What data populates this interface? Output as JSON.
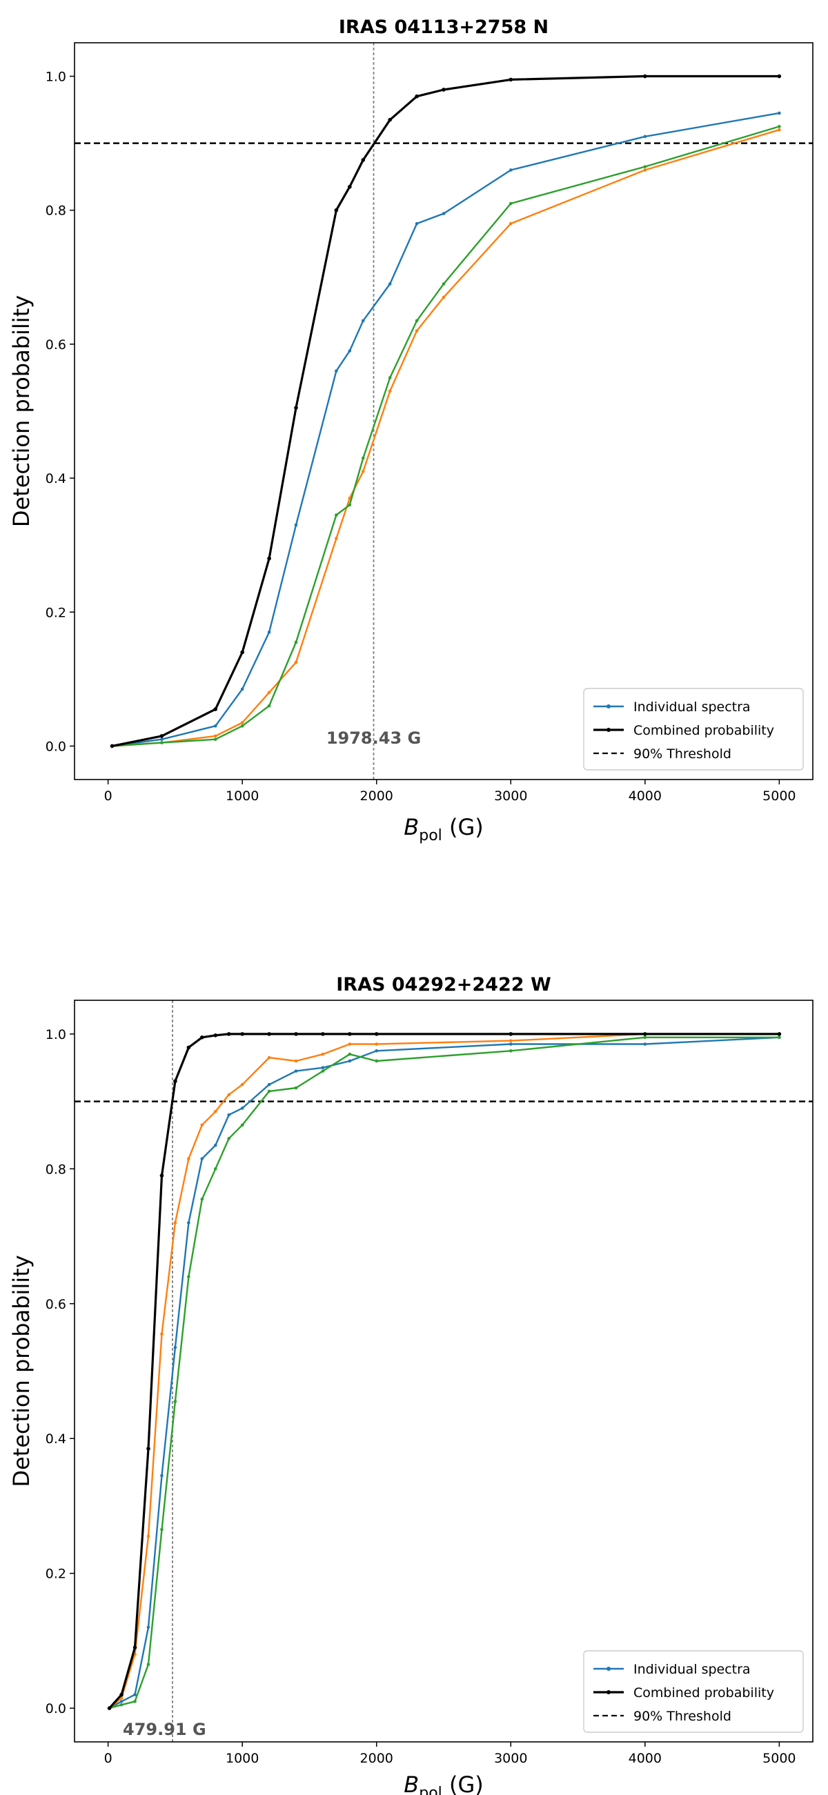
{
  "figure": {
    "legend_labels": [
      "Individual spectra",
      "Combined probability",
      "90% Threshold"
    ],
    "colors": {
      "spectrum_1": "#1f77b4",
      "spectrum_2": "#ff7f0e",
      "spectrum_3": "#2ca02c",
      "combined": "#000000",
      "threshold": "#000000",
      "vline": "#808080",
      "annotation": "#555555"
    }
  },
  "chart_data": [
    {
      "type": "line",
      "title": "IRAS 04113+2758 N",
      "xlabel_main": "B",
      "xlabel_sub": "pol",
      "xlabel_unit": " (G)",
      "ylabel": "Detection probability",
      "xlim": [
        -250,
        5250
      ],
      "ylim": [
        -0.05,
        1.05
      ],
      "xticks": [
        0,
        1000,
        2000,
        3000,
        4000,
        5000
      ],
      "yticks": [
        0.0,
        0.2,
        0.4,
        0.6,
        0.8,
        1.0
      ],
      "ytick_labels": [
        "0.0",
        "0.2",
        "0.4",
        "0.6",
        "0.8",
        "1.0"
      ],
      "threshold": 0.9,
      "vline": 1978.43,
      "annotation": "1978.43 G",
      "legend_position": "lower-right",
      "series": [
        {
          "x": [
            30,
            400,
            800,
            1000,
            1200,
            1400,
            1700,
            1800,
            1900,
            2100,
            2300,
            2500,
            3000,
            4000,
            5000
          ],
          "y": [
            0.0,
            0.01,
            0.03,
            0.085,
            0.17,
            0.33,
            0.56,
            0.59,
            0.635,
            0.69,
            0.78,
            0.795,
            0.86,
            0.91,
            0.945
          ]
        },
        {
          "x": [
            30,
            400,
            800,
            1000,
            1200,
            1400,
            1700,
            1800,
            1900,
            2100,
            2300,
            2500,
            3000,
            4000,
            5000
          ],
          "y": [
            0.0,
            0.005,
            0.015,
            0.035,
            0.08,
            0.125,
            0.31,
            0.37,
            0.41,
            0.53,
            0.62,
            0.67,
            0.78,
            0.86,
            0.92
          ]
        },
        {
          "x": [
            30,
            400,
            800,
            1000,
            1200,
            1400,
            1700,
            1800,
            1900,
            2100,
            2300,
            2500,
            3000,
            4000,
            5000
          ],
          "y": [
            0.0,
            0.005,
            0.01,
            0.03,
            0.06,
            0.155,
            0.345,
            0.36,
            0.43,
            0.55,
            0.635,
            0.69,
            0.81,
            0.865,
            0.925
          ]
        },
        {
          "x": [
            30,
            400,
            800,
            1000,
            1200,
            1400,
            1700,
            1800,
            1900,
            2100,
            2300,
            2500,
            3000,
            4000,
            5000
          ],
          "y": [
            0.0,
            0.015,
            0.055,
            0.14,
            0.28,
            0.505,
            0.8,
            0.835,
            0.875,
            0.935,
            0.97,
            0.98,
            0.995,
            1.0,
            1.0
          ]
        }
      ]
    },
    {
      "type": "line",
      "title": "IRAS 04292+2422 W",
      "xlabel_main": "B",
      "xlabel_sub": "pol",
      "xlabel_unit": " (G)",
      "ylabel": "Detection probability",
      "xlim": [
        -250,
        5250
      ],
      "ylim": [
        -0.05,
        1.05
      ],
      "xticks": [
        0,
        1000,
        2000,
        3000,
        4000,
        5000
      ],
      "yticks": [
        0.0,
        0.2,
        0.4,
        0.6,
        0.8,
        1.0
      ],
      "ytick_labels": [
        "0.0",
        "0.2",
        "0.4",
        "0.6",
        "0.8",
        "1.0"
      ],
      "threshold": 0.9,
      "vline": 479.91,
      "annotation": "479.91 G",
      "legend_position": "lower-right",
      "series": [
        {
          "x": [
            10,
            100,
            200,
            300,
            400,
            500,
            600,
            700,
            800,
            900,
            1000,
            1200,
            1400,
            1600,
            1800,
            2000,
            3000,
            4000,
            5000
          ],
          "y": [
            0.0,
            0.01,
            0.02,
            0.12,
            0.345,
            0.535,
            0.72,
            0.815,
            0.835,
            0.88,
            0.89,
            0.925,
            0.945,
            0.95,
            0.96,
            0.975,
            0.985,
            0.985,
            0.995
          ]
        },
        {
          "x": [
            10,
            100,
            200,
            300,
            400,
            500,
            600,
            700,
            800,
            900,
            1000,
            1200,
            1400,
            1600,
            1800,
            2000,
            3000,
            4000,
            5000
          ],
          "y": [
            0.0,
            0.015,
            0.08,
            0.255,
            0.555,
            0.72,
            0.815,
            0.865,
            0.885,
            0.91,
            0.925,
            0.965,
            0.96,
            0.97,
            0.985,
            0.985,
            0.99,
            1.0,
            1.0
          ]
        },
        {
          "x": [
            10,
            100,
            200,
            300,
            400,
            500,
            600,
            700,
            800,
            900,
            1000,
            1200,
            1400,
            1600,
            1800,
            2000,
            3000,
            4000,
            5000
          ],
          "y": [
            0.0,
            0.005,
            0.01,
            0.065,
            0.265,
            0.455,
            0.64,
            0.755,
            0.8,
            0.845,
            0.865,
            0.915,
            0.92,
            0.945,
            0.97,
            0.96,
            0.975,
            0.995,
            0.995
          ]
        },
        {
          "x": [
            10,
            100,
            200,
            300,
            400,
            500,
            600,
            700,
            800,
            900,
            1000,
            1200,
            1400,
            1600,
            1800,
            2000,
            3000,
            4000,
            5000
          ],
          "y": [
            0.0,
            0.02,
            0.09,
            0.385,
            0.79,
            0.93,
            0.98,
            0.995,
            0.998,
            1.0,
            1.0,
            1.0,
            1.0,
            1.0,
            1.0,
            1.0,
            1.0,
            1.0,
            1.0
          ]
        }
      ]
    }
  ]
}
